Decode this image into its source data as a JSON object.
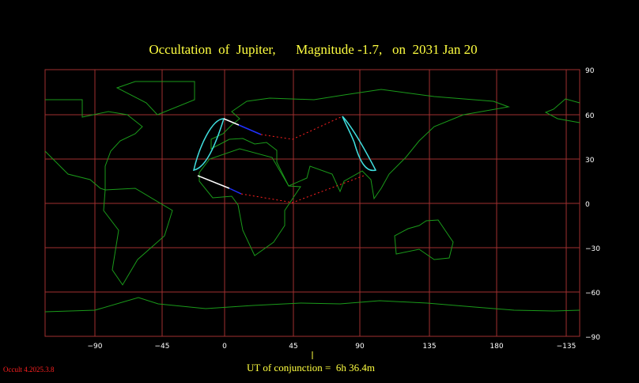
{
  "title": "Occultation  of  Jupiter,      Magnitude -1.7,   on  2031 Jan 20",
  "longitude_labels": [
    "−90",
    "−45",
    "0",
    "45",
    "90",
    "135",
    "180",
    "−135"
  ],
  "latitude_labels": [
    "90",
    "60",
    "30",
    "0",
    "−30",
    "−60",
    "−90"
  ],
  "conjunction": "UT of conjunction =  6h 36.4m",
  "version": "Occult 4.2025.3.8"
}
